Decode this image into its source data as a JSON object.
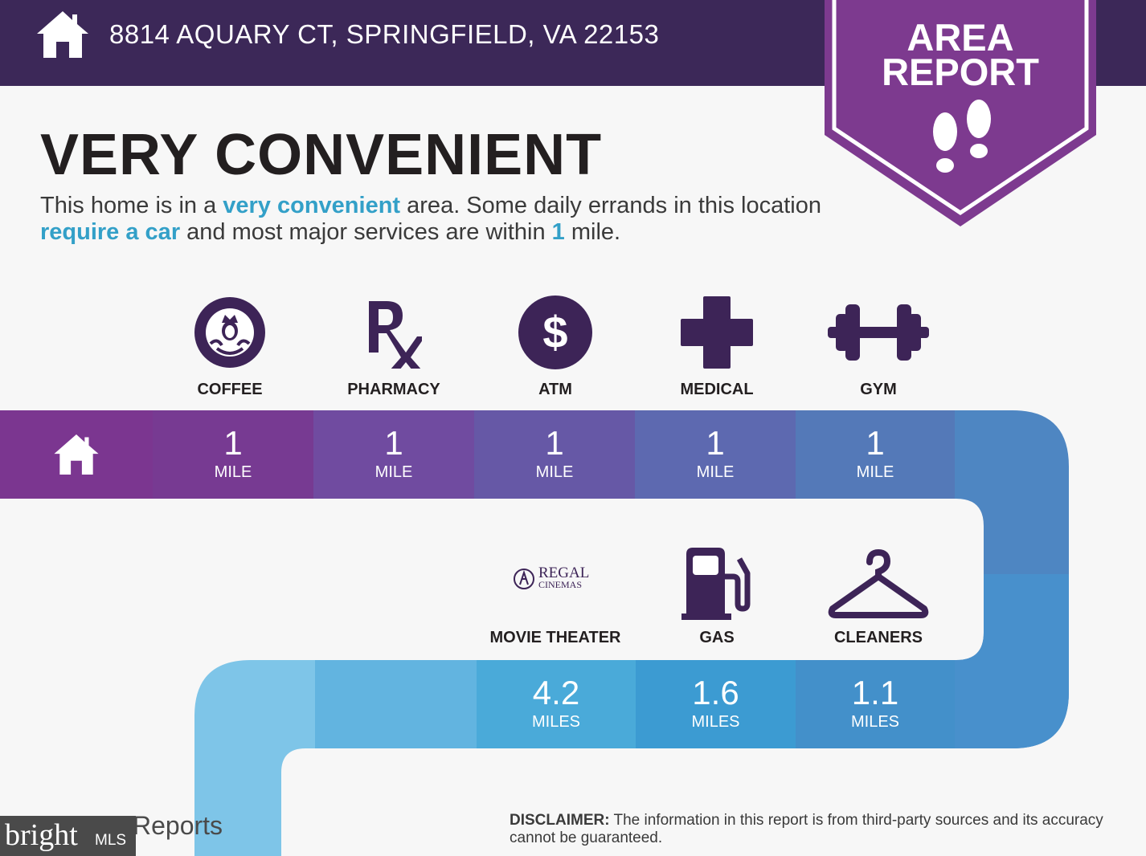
{
  "header": {
    "address": "8814 AQUARY CT, SPRINGFIELD, VA 22153",
    "home_icon": "house-icon",
    "bg_color": "#3c2858"
  },
  "badge": {
    "line1": "AREA",
    "line2": "REPORT",
    "icon": "footprints-icon",
    "color": "#7d3a8f"
  },
  "headline": "VERY CONVENIENT",
  "intro": {
    "part1": "This home is in a ",
    "highlight1": "very convenient",
    "part2": " area. Some daily errands in this location ",
    "highlight2": "require a car",
    "part3": " and most major services are within ",
    "highlight3": "1",
    "part4": " mile.",
    "highlight_color": "#33a0c8"
  },
  "row1": {
    "home_icon": "house-icon",
    "items": [
      {
        "label": "COFFEE",
        "icon": "starbucks-logo-icon",
        "distance": "1",
        "unit": "MILE",
        "color": "#773a92"
      },
      {
        "label": "PHARMACY",
        "icon": "rx-icon",
        "distance": "1",
        "unit": "MILE",
        "color": "#704ba0"
      },
      {
        "label": "ATM",
        "icon": "dollar-icon",
        "distance": "1",
        "unit": "MILE",
        "color": "#6658a6"
      },
      {
        "label": "MEDICAL",
        "icon": "medical-cross-icon",
        "distance": "1",
        "unit": "MILE",
        "color": "#5d69b0"
      },
      {
        "label": "GYM",
        "icon": "dumbbell-icon",
        "distance": "1",
        "unit": "MILE",
        "color": "#5479b8"
      }
    ]
  },
  "row2": {
    "items": [
      {
        "label": "MOVIE THEATER",
        "icon": "regal-cinemas-logo-icon",
        "logo_line1": "REGAL",
        "logo_line2": "CINEMAS",
        "distance": "4.2",
        "unit": "MILES",
        "color": "#4aaad9"
      },
      {
        "label": "GAS",
        "icon": "gas-pump-icon",
        "distance": "1.6",
        "unit": "MILES",
        "color": "#3c9bd2"
      },
      {
        "label": "CLEANERS",
        "icon": "hanger-icon",
        "distance": "1.1",
        "unit": "MILES",
        "color": "#4390ca"
      }
    ]
  },
  "disclaimer": {
    "label": "DISCLAIMER:",
    "text": " The information in this report is from third-party sources and its accuracy cannot be guaranteed."
  },
  "footer": {
    "brand_text": "bright",
    "brand_suffix": "MLS",
    "reports_text": "Reports"
  }
}
